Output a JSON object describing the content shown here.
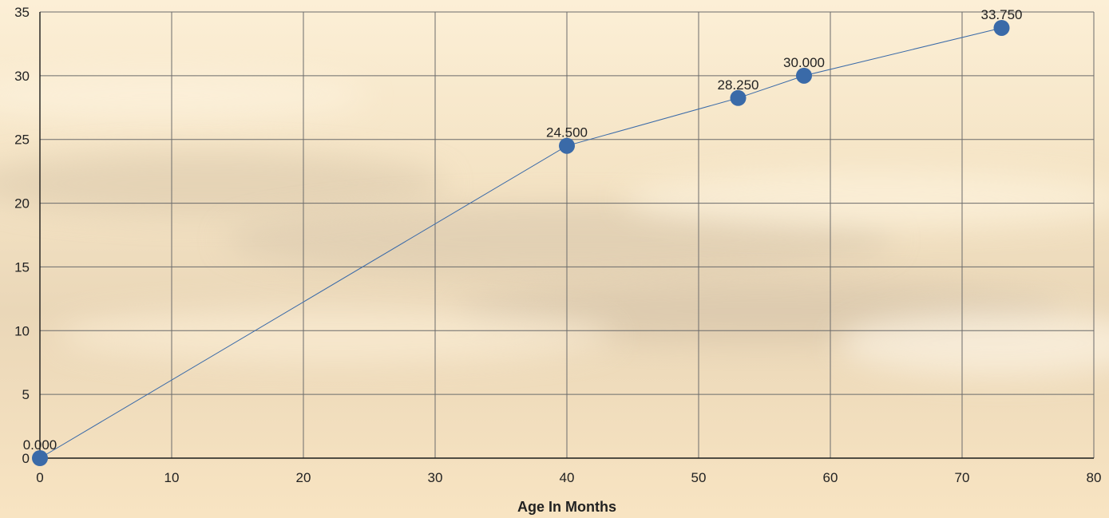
{
  "chart_data": {
    "type": "line",
    "title": "",
    "xlabel": "Age In Months",
    "ylabel": "",
    "xlim": [
      0,
      80
    ],
    "ylim": [
      0,
      35
    ],
    "x_ticks": [
      0,
      10,
      20,
      30,
      40,
      50,
      60,
      70,
      80
    ],
    "y_ticks": [
      0,
      5,
      10,
      15,
      20,
      25,
      30,
      35
    ],
    "grid": true,
    "legend": "none",
    "series": [
      {
        "color": "#3a6aa8",
        "points": [
          {
            "x": 0,
            "y": 0.0,
            "label": "0.000"
          },
          {
            "x": 40,
            "y": 24.5,
            "label": "24.500"
          },
          {
            "x": 53,
            "y": 28.25,
            "label": "28.250"
          },
          {
            "x": 58,
            "y": 30.0,
            "label": "30.000"
          },
          {
            "x": 73,
            "y": 33.75,
            "label": "33.750"
          }
        ]
      }
    ]
  }
}
